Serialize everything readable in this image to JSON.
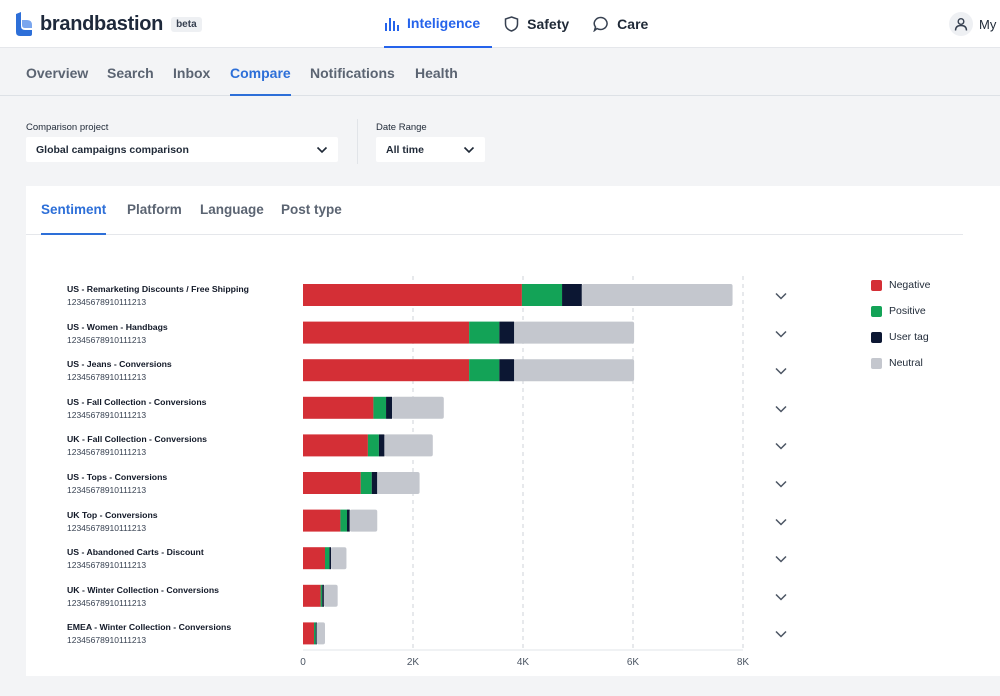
{
  "app": {
    "brand": "brandbastion",
    "badge": "beta",
    "account_label": "My a"
  },
  "main_nav": [
    {
      "label": "Inteligence",
      "icon": "bar-chart-icon",
      "active": true
    },
    {
      "label": "Safety",
      "icon": "shield-icon",
      "active": false
    },
    {
      "label": "Care",
      "icon": "chat-bubble-icon",
      "active": false
    }
  ],
  "sub_nav": [
    "Overview",
    "Search",
    "Inbox",
    "Compare",
    "Notifications",
    "Health"
  ],
  "sub_nav_active": "Compare",
  "filters": {
    "project_label": "Comparison project",
    "project_value": "Global campaigns comparison",
    "date_label": "Date Range",
    "date_value": "All time"
  },
  "card_tabs": [
    "Sentiment",
    "Platform",
    "Language",
    "Post type"
  ],
  "card_tab_active": "Sentiment",
  "chart_data": {
    "type": "bar",
    "orientation": "horizontal",
    "stacked": true,
    "categories": [
      "US - Remarketing Discounts / Free Shipping",
      "US - Women - Handbags",
      "US - Jeans - Conversions",
      "US - Fall Collection - Conversions",
      "UK - Fall Collection - Conversions",
      "US - Tops - Conversions",
      "UK Top - Conversions",
      "US - Abandoned Carts - Discount",
      "UK - Winter Collection - Conversions",
      "EMEA - Winter Collection - Conversions"
    ],
    "category_ids": [
      "12345678910111213",
      "12345678910111213",
      "12345678910111213",
      "12345678910111213",
      "12345678910111213",
      "12345678910111213",
      "12345678910111213",
      "12345678910111213",
      "12345678910111213",
      "12345678910111213"
    ],
    "series": [
      {
        "name": "Negative",
        "color": "#d42f36",
        "values": [
          3980,
          3020,
          3020,
          1280,
          1180,
          1050,
          680,
          400,
          320,
          200
        ]
      },
      {
        "name": "Positive",
        "color": "#13a357",
        "values": [
          730,
          550,
          550,
          230,
          200,
          200,
          120,
          80,
          30,
          30
        ]
      },
      {
        "name": "User tag",
        "color": "#0c1733",
        "values": [
          360,
          270,
          270,
          110,
          100,
          100,
          50,
          30,
          30,
          20
        ]
      },
      {
        "name": "Neutral",
        "color": "#c4c7ce",
        "values": [
          2740,
          2180,
          2180,
          940,
          880,
          770,
          500,
          280,
          250,
          150
        ]
      }
    ],
    "xlim": [
      0,
      8000
    ],
    "x_ticks": [
      0,
      2000,
      4000,
      6000,
      8000
    ],
    "x_tick_labels": [
      "0",
      "2K",
      "4K",
      "6K",
      "8K"
    ],
    "grid": "vertical dashed",
    "legend_position": "right"
  }
}
